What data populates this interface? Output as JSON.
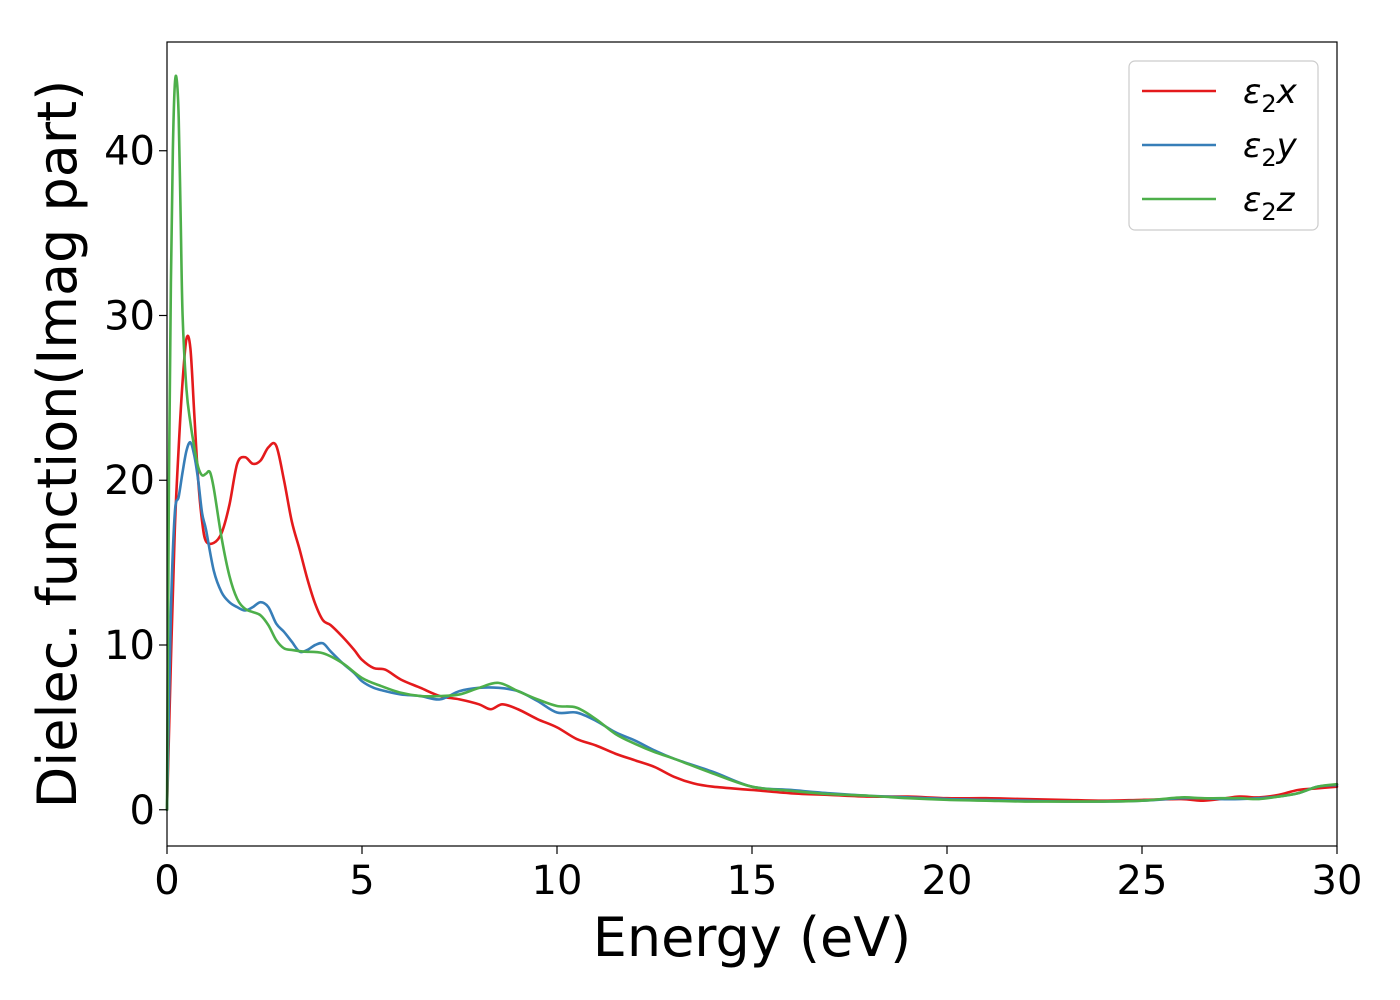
{
  "chart_data": {
    "type": "line",
    "title": "",
    "xlabel": "Energy (eV)",
    "ylabel": "Dielec. function(Imag part)",
    "xlim": [
      0,
      30
    ],
    "ylim": [
      -2.2,
      46.6
    ],
    "xticks": [
      0,
      5,
      10,
      15,
      20,
      25,
      30
    ],
    "yticks": [
      0,
      10,
      20,
      30,
      40
    ],
    "grid": false,
    "legend_position": "top-right",
    "series": [
      {
        "name": "ε₂x",
        "legend": {
          "symbol": "ε",
          "sub": "2",
          "var": "x"
        },
        "color": "#e41a1c",
        "x": [
          0,
          0.1,
          0.2,
          0.3,
          0.4,
          0.5,
          0.6,
          0.7,
          0.8,
          0.9,
          1.0,
          1.2,
          1.4,
          1.6,
          1.8,
          2.0,
          2.2,
          2.4,
          2.6,
          2.8,
          3.0,
          3.2,
          3.4,
          3.6,
          3.8,
          4.0,
          4.2,
          4.5,
          4.8,
          5.0,
          5.3,
          5.6,
          6.0,
          6.5,
          7.0,
          7.5,
          8.0,
          8.3,
          8.6,
          9.0,
          9.5,
          10.0,
          10.5,
          11.0,
          11.5,
          12.0,
          12.5,
          13.0,
          13.5,
          14.0,
          15.0,
          16.0,
          17.0,
          18.0,
          19.0,
          20.0,
          21.0,
          22.0,
          23.0,
          24.0,
          25.0,
          26.0,
          26.5,
          27.0,
          27.5,
          28.0,
          28.5,
          29.0,
          29.5,
          30.0
        ],
        "y": [
          0,
          9,
          17,
          22,
          26,
          28.6,
          28,
          24,
          20,
          17.5,
          16.3,
          16.2,
          16.8,
          18.5,
          21,
          21.4,
          21,
          21.2,
          22,
          22.1,
          20,
          17.5,
          15.8,
          14,
          12.5,
          11.5,
          11.2,
          10.5,
          9.7,
          9.1,
          8.6,
          8.5,
          7.9,
          7.4,
          6.9,
          6.7,
          6.4,
          6.1,
          6.4,
          6.1,
          5.5,
          5.0,
          4.3,
          3.9,
          3.4,
          3.0,
          2.6,
          2.0,
          1.6,
          1.4,
          1.2,
          1.0,
          0.9,
          0.8,
          0.8,
          0.7,
          0.7,
          0.65,
          0.6,
          0.55,
          0.6,
          0.65,
          0.55,
          0.65,
          0.8,
          0.75,
          0.9,
          1.2,
          1.3,
          1.4
        ]
      },
      {
        "name": "ε₂y",
        "legend": {
          "symbol": "ε",
          "sub": "2",
          "var": "y"
        },
        "color": "#377eb8",
        "x": [
          0,
          0.1,
          0.2,
          0.3,
          0.4,
          0.5,
          0.6,
          0.7,
          0.8,
          0.9,
          1.0,
          1.2,
          1.4,
          1.6,
          1.8,
          2.0,
          2.2,
          2.4,
          2.6,
          2.8,
          3.0,
          3.2,
          3.4,
          3.6,
          3.8,
          4.0,
          4.2,
          4.5,
          4.8,
          5.0,
          5.3,
          5.6,
          6.0,
          6.5,
          7.0,
          7.5,
          8.0,
          8.5,
          9.0,
          9.5,
          10.0,
          10.5,
          11.0,
          11.5,
          12.0,
          12.5,
          13.0,
          14.0,
          15.0,
          16.0,
          17.0,
          18.0,
          19.0,
          20.0,
          21.0,
          22.0,
          23.0,
          24.0,
          25.0,
          26.0,
          26.5,
          27.0,
          27.5,
          28.0,
          28.5,
          29.0,
          29.5,
          30.0
        ],
        "y": [
          0,
          12,
          18,
          19,
          20.5,
          21.8,
          22.3,
          21.5,
          20,
          18,
          17,
          14.5,
          13.2,
          12.6,
          12.3,
          12.1,
          12.3,
          12.6,
          12.3,
          11.3,
          10.8,
          10.2,
          9.6,
          9.7,
          10.0,
          10.1,
          9.6,
          8.9,
          8.3,
          7.8,
          7.4,
          7.2,
          7.0,
          6.9,
          6.7,
          7.2,
          7.4,
          7.4,
          7.2,
          6.6,
          5.9,
          5.9,
          5.4,
          4.7,
          4.2,
          3.6,
          3.1,
          2.3,
          1.4,
          1.2,
          1.0,
          0.85,
          0.75,
          0.65,
          0.6,
          0.55,
          0.5,
          0.5,
          0.55,
          0.7,
          0.7,
          0.65,
          0.65,
          0.7,
          0.8,
          1.0,
          1.4,
          1.5
        ]
      },
      {
        "name": "ε₂z",
        "legend": {
          "symbol": "ε",
          "sub": "2",
          "var": "z"
        },
        "color": "#4daf4a",
        "x": [
          0,
          0.05,
          0.1,
          0.15,
          0.2,
          0.25,
          0.3,
          0.35,
          0.4,
          0.5,
          0.6,
          0.7,
          0.8,
          0.9,
          1.0,
          1.1,
          1.2,
          1.4,
          1.6,
          1.8,
          2.0,
          2.2,
          2.4,
          2.6,
          2.8,
          3.0,
          3.2,
          3.5,
          4.0,
          4.5,
          5.0,
          5.5,
          6.0,
          6.5,
          7.0,
          7.5,
          8.0,
          8.5,
          9.0,
          9.5,
          10.0,
          10.5,
          11.0,
          11.5,
          12.0,
          12.5,
          13.0,
          14.0,
          15.0,
          16.0,
          17.0,
          18.0,
          19.0,
          20.0,
          21.0,
          22.0,
          23.0,
          24.0,
          25.0,
          26.0,
          26.5,
          27.0,
          27.5,
          28.0,
          28.5,
          29.0,
          29.5,
          30.0
        ],
        "y": [
          0,
          20,
          32,
          40,
          44,
          44.3,
          42,
          36,
          30,
          25.5,
          23.5,
          22,
          20.8,
          20.3,
          20.4,
          20.5,
          19.5,
          16.5,
          14.2,
          12.8,
          12.2,
          12.0,
          11.8,
          11.2,
          10.3,
          9.8,
          9.7,
          9.6,
          9.5,
          8.9,
          8.0,
          7.5,
          7.1,
          6.9,
          6.9,
          7.0,
          7.4,
          7.7,
          7.2,
          6.7,
          6.3,
          6.2,
          5.5,
          4.6,
          4.0,
          3.5,
          3.1,
          2.2,
          1.4,
          1.15,
          0.95,
          0.85,
          0.7,
          0.6,
          0.55,
          0.5,
          0.5,
          0.5,
          0.55,
          0.75,
          0.7,
          0.7,
          0.7,
          0.65,
          0.8,
          1.0,
          1.4,
          1.55
        ]
      }
    ]
  }
}
